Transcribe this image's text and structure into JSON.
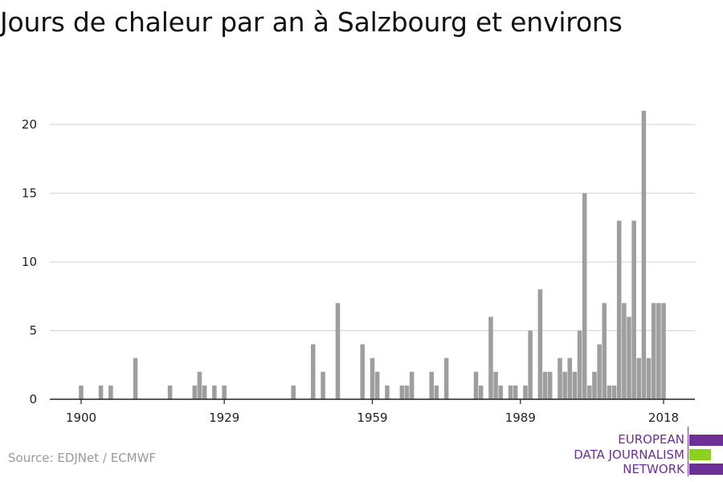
{
  "title": "Jours de chaleur par an à Salzbourg et environs",
  "source": "Source: EDJNet / ECMWF",
  "logo": {
    "line1": "EUROPEAN",
    "line2": "DATA JOURNALISM",
    "line3": "NETWORK"
  },
  "colors": {
    "bars": "#9e9e9e",
    "grid": "#d9d9d9",
    "axis": "#222222",
    "logo_purple": "#6e2f96",
    "logo_green": "#8cd11e"
  },
  "chart_data": {
    "type": "bar",
    "title": "Jours de chaleur par an à Salzbourg et environs",
    "xlabel": "",
    "ylabel": "",
    "xlim": [
      1895,
      2022
    ],
    "ylim": [
      0,
      22
    ],
    "yticks": [
      0,
      5,
      10,
      15,
      20
    ],
    "xticks": [
      1900,
      1929,
      1959,
      1989,
      2018
    ],
    "grid": true,
    "x": [
      1900,
      1904,
      1906,
      1911,
      1918,
      1923,
      1924,
      1925,
      1927,
      1929,
      1943,
      1947,
      1949,
      1952,
      1957,
      1959,
      1960,
      1962,
      1965,
      1966,
      1967,
      1971,
      1972,
      1974,
      1980,
      1981,
      1983,
      1984,
      1985,
      1987,
      1988,
      1990,
      1991,
      1993,
      1994,
      1995,
      1997,
      1998,
      1999,
      2000,
      2001,
      2002,
      2003,
      2004,
      2005,
      2006,
      2007,
      2008,
      2009,
      2010,
      2011,
      2012,
      2013,
      2014,
      2015,
      2016,
      2017,
      2018
    ],
    "values": [
      1,
      1,
      1,
      3,
      1,
      1,
      2,
      1,
      1,
      1,
      1,
      4,
      2,
      7,
      4,
      3,
      2,
      1,
      1,
      1,
      2,
      2,
      1,
      3,
      2,
      1,
      6,
      2,
      1,
      1,
      1,
      1,
      5,
      8,
      2,
      2,
      3,
      2,
      3,
      2,
      5,
      15,
      1,
      2,
      4,
      7,
      1,
      1,
      13,
      7,
      6,
      13,
      3,
      21,
      3,
      7,
      7,
      7
    ]
  }
}
